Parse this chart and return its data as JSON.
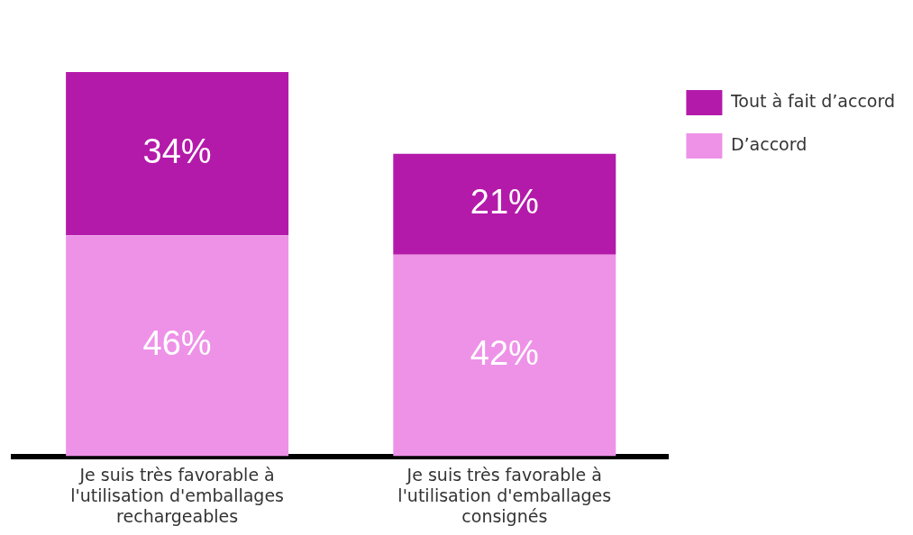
{
  "chart_data": {
    "type": "bar",
    "stacked": true,
    "legend": "top right",
    "categories": [
      "Je suis très favorable à l'utilisation d'emballages rechargeables",
      "Je suis très favorable à l'utilisation d'emballages consignés"
    ],
    "series": [
      {
        "name": "D’accord",
        "color": "#ee92e8",
        "values": [
          46,
          42
        ],
        "value_labels": [
          "46%",
          "42%"
        ]
      },
      {
        "name": "Tout à fait d’accord",
        "color": "#b41aaa",
        "values": [
          34,
          21
        ],
        "value_labels": [
          "34%",
          "21%"
        ]
      }
    ]
  }
}
